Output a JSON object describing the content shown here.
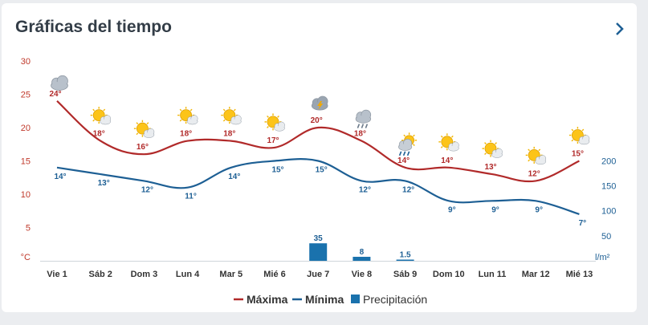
{
  "header": {
    "title": "Gráficas del tiempo"
  },
  "colors": {
    "max": "#b12a2a",
    "min": "#1d5f94",
    "precip": "#1a72ad"
  },
  "chart_data": {
    "type": "line",
    "categories": [
      "Vie 1",
      "Sáb 2",
      "Dom 3",
      "Lun 4",
      "Mar 5",
      "Mié 6",
      "Jue 7",
      "Vie 8",
      "Sáb 9",
      "Dom 10",
      "Lun 11",
      "Mar 12",
      "Mié 13"
    ],
    "series": [
      {
        "name": "Máxima",
        "type": "line",
        "axis": "left",
        "values": [
          24,
          18,
          16,
          18,
          18,
          17,
          20,
          18,
          14,
          14,
          13,
          12,
          15
        ],
        "labels": [
          "24°",
          "18°",
          "16°",
          "18°",
          "18°",
          "17°",
          "20°",
          "18°",
          "14°",
          "14°",
          "13°",
          "12°",
          "15°"
        ]
      },
      {
        "name": "Mínima",
        "type": "line",
        "axis": "left",
        "values": [
          14,
          13,
          12,
          11,
          14,
          15,
          15,
          12,
          12,
          9,
          9,
          9,
          7
        ],
        "labels": [
          "14°",
          "13°",
          "12°",
          "11°",
          "14°",
          "15°",
          "15°",
          "12°",
          "12°",
          "9°",
          "9°",
          "9°",
          "7°"
        ]
      },
      {
        "name": "Precipitación",
        "type": "bar",
        "axis": "right",
        "values": [
          0,
          0,
          0,
          0,
          0,
          0,
          35,
          8,
          1.5,
          0,
          0,
          0,
          0
        ],
        "labels": [
          "",
          "",
          "",
          "",
          "",
          "",
          "35",
          "8",
          "1.5",
          "",
          "",
          "",
          ""
        ]
      }
    ],
    "y_left": {
      "unit": "°C",
      "ticks": [
        "30",
        "25",
        "20",
        "15",
        "10",
        "5"
      ],
      "range": [
        0,
        30
      ]
    },
    "y_right": {
      "unit": "l/m²",
      "ticks": [
        "200",
        "150",
        "100",
        "50"
      ],
      "range": [
        0,
        200
      ]
    },
    "weather_icons": [
      "cloudy-icon",
      "sun-cloud-icon",
      "sun-cloud-icon",
      "sun-cloud-icon",
      "sun-cloud-icon",
      "sun-cloud-icon",
      "storm-icon",
      "rain-cloud-icon",
      "sun-rain-icon",
      "sun-cloud-icon",
      "sun-cloud-icon",
      "sun-cloud-icon",
      "sun-cloud-icon"
    ],
    "grid": false,
    "legend": "bottom-center"
  }
}
